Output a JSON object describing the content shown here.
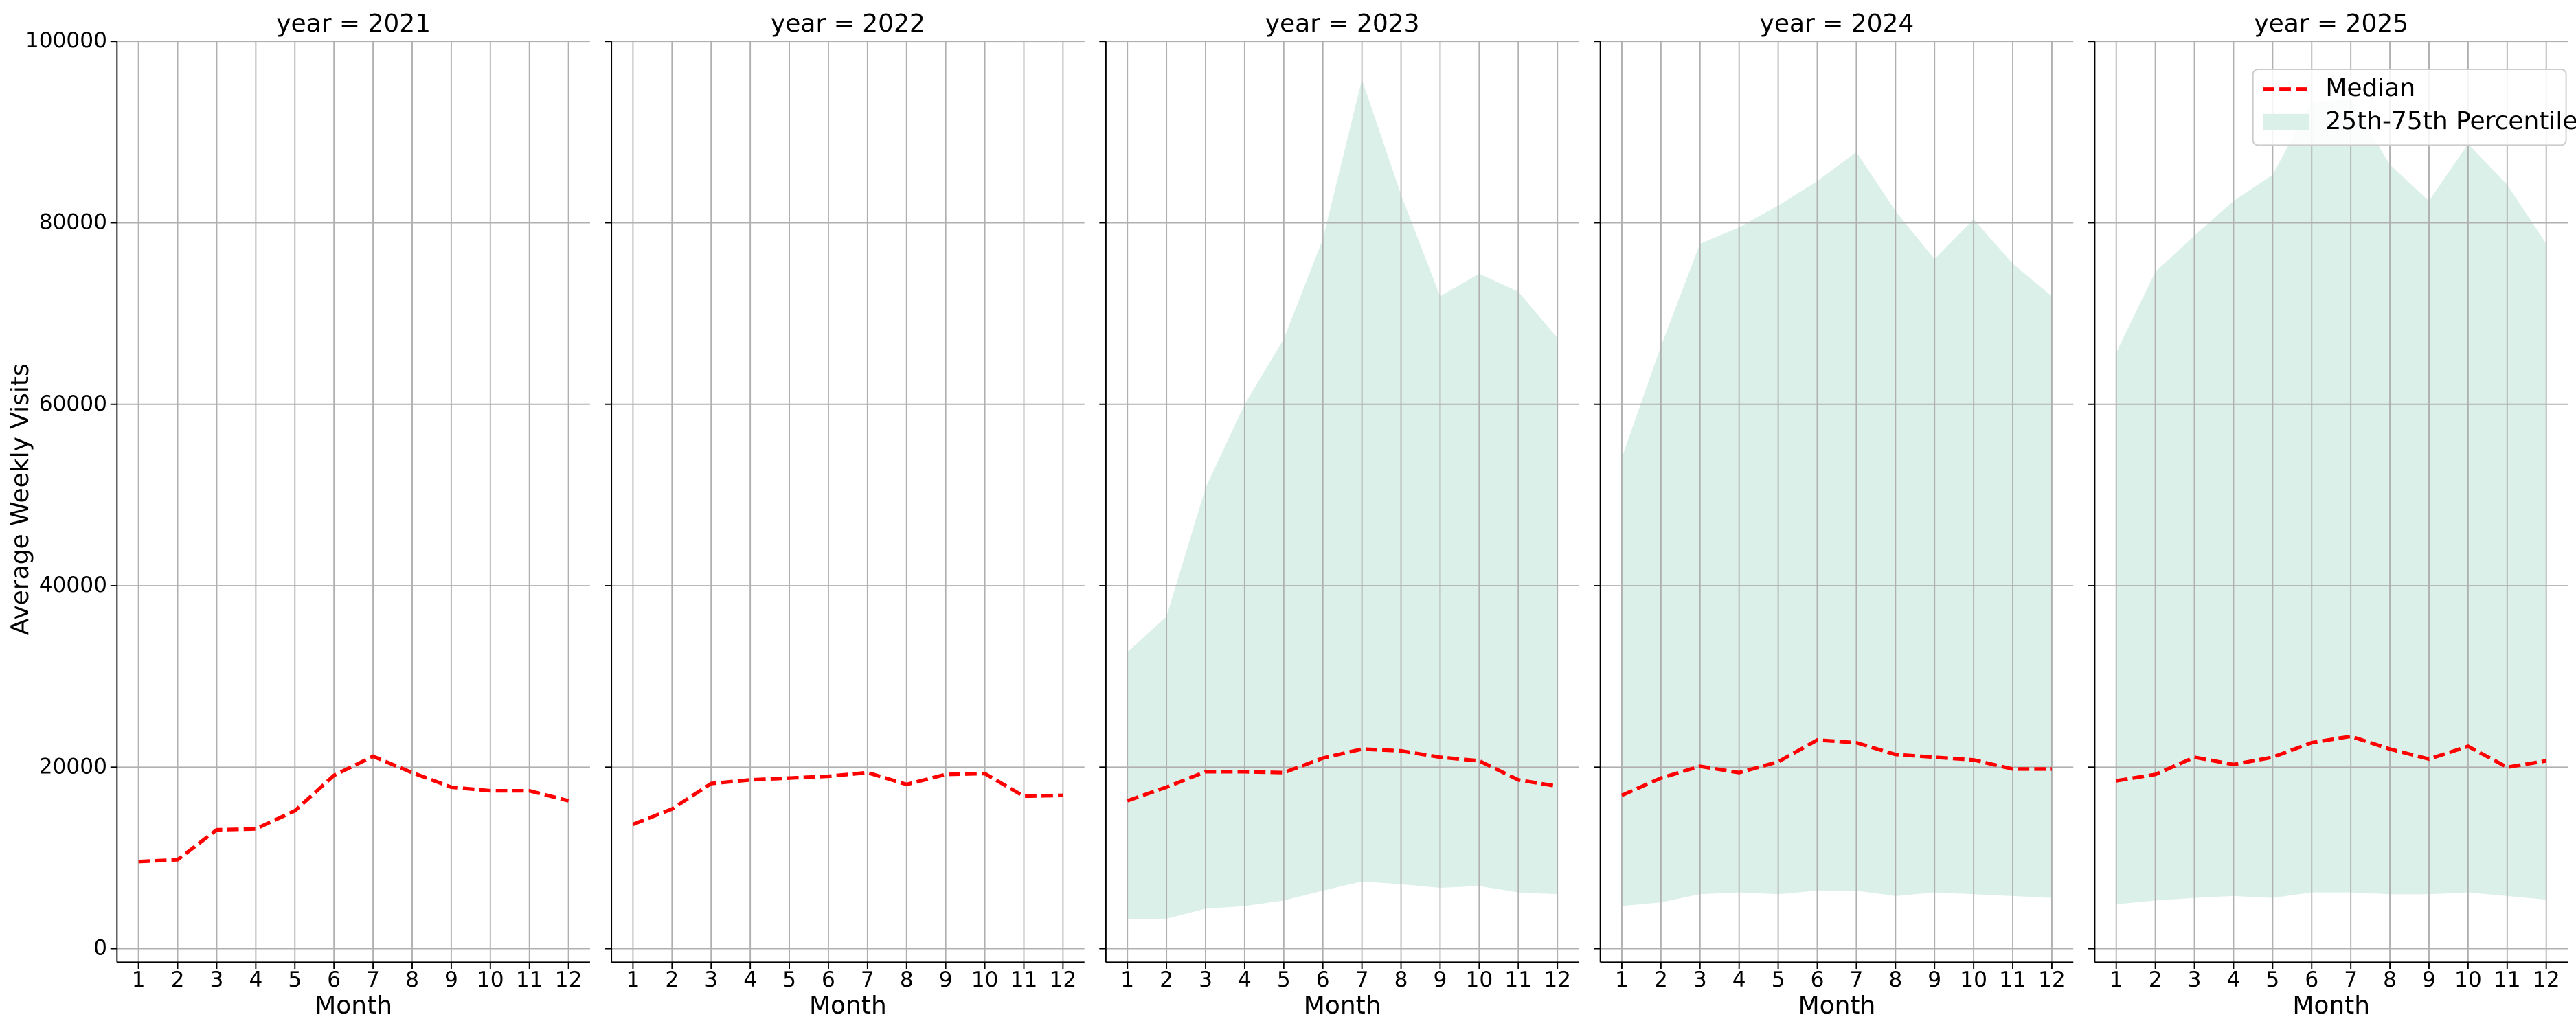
{
  "chart_data": {
    "type": "line",
    "ylabel": "Average Weekly Visits",
    "xlabel": "Month",
    "x": [
      1,
      2,
      3,
      4,
      5,
      6,
      7,
      8,
      9,
      10,
      11,
      12
    ],
    "xlim": [
      0.45,
      12.55
    ],
    "ylim": [
      -1500,
      100000
    ],
    "yticks": [
      0,
      20000,
      40000,
      60000,
      80000,
      100000
    ],
    "grid": true,
    "legend": "upper right",
    "series": [
      {
        "name": "Median",
        "color": "#ff0000"
      },
      {
        "name": "25th-75th Percentile",
        "color": "#dcf0ea"
      }
    ],
    "panels": [
      {
        "title": "year = 2021",
        "median": [
          9600,
          9800,
          13100,
          13200,
          15200,
          19100,
          21200,
          19400,
          17800,
          17400,
          17400,
          16300
        ]
      },
      {
        "title": "year = 2022",
        "median": [
          13700,
          15400,
          18200,
          18600,
          18800,
          19000,
          19400,
          18100,
          19200,
          19300,
          16800,
          16900
        ]
      },
      {
        "title": "year = 2023",
        "median": [
          16300,
          17800,
          19500,
          19500,
          19400,
          21000,
          22000,
          21800,
          21100,
          20700,
          18600,
          17900
        ],
        "p25": [
          3300,
          3300,
          4400,
          4700,
          5300,
          6400,
          7400,
          7100,
          6700,
          6900,
          6200,
          6000
        ],
        "p75": [
          32700,
          36600,
          50800,
          60000,
          67200,
          78200,
          95800,
          83100,
          71900,
          74400,
          72400,
          67300
        ]
      },
      {
        "title": "year = 2024",
        "median": [
          16900,
          18800,
          20100,
          19400,
          20600,
          23000,
          22700,
          21400,
          21100,
          20800,
          19800,
          19800
        ],
        "p25": [
          4700,
          5100,
          6000,
          6200,
          6000,
          6400,
          6400,
          5800,
          6200,
          6000,
          5800,
          5600
        ],
        "p75": [
          54100,
          66400,
          77700,
          79500,
          81900,
          84600,
          87800,
          81300,
          76000,
          80400,
          75500,
          71900
        ]
      },
      {
        "title": "year = 2025",
        "median": [
          18500,
          19200,
          21100,
          20300,
          21100,
          22700,
          23400,
          22000,
          20900,
          22300,
          20000,
          20700
        ],
        "p25": [
          4900,
          5300,
          5600,
          5800,
          5600,
          6200,
          6200,
          6000,
          6000,
          6200,
          5800,
          5400
        ],
        "p75": [
          65700,
          74600,
          78600,
          82400,
          85300,
          93300,
          93600,
          86400,
          82400,
          88700,
          84200,
          77700
        ]
      }
    ]
  }
}
